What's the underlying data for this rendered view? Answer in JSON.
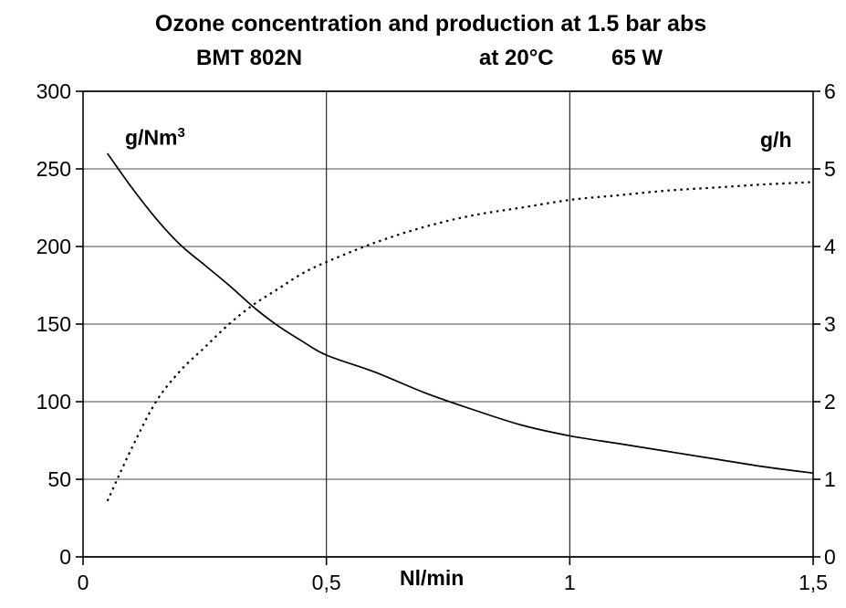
{
  "chart_data": {
    "type": "line",
    "title": "Ozone concentration and production at 1.5 bar abs",
    "subtitle": {
      "model": "BMT 802N",
      "temperature": "at 20°C",
      "power": "65 W"
    },
    "xlabel": "Nl/min",
    "x_range": [
      0,
      1.5
    ],
    "x_ticks": [
      {
        "label": "0",
        "value": 0
      },
      {
        "label": "0,5",
        "value": 0.5
      },
      {
        "label": "1",
        "value": 1
      },
      {
        "label": "1,5",
        "value": 1.5
      }
    ],
    "left_axis": {
      "label": "g/Nm³",
      "label_base": "g/Nm",
      "label_sup": "3",
      "range": [
        0,
        300
      ],
      "ticks": [
        0,
        50,
        100,
        150,
        200,
        250,
        300
      ]
    },
    "right_axis": {
      "label": "g/h",
      "range": [
        0,
        6
      ],
      "ticks": [
        0,
        1,
        2,
        3,
        4,
        5,
        6
      ]
    },
    "grid": {
      "h_values": [
        0,
        50,
        100,
        150,
        200,
        250,
        300
      ],
      "v_values": [
        0.5,
        1.0
      ]
    },
    "line_color": "#000000",
    "series": [
      {
        "name": "Ozone concentration",
        "unit": "g/Nm³",
        "axis": "left",
        "line_style": "solid",
        "x": [
          0.05,
          0.1,
          0.15,
          0.2,
          0.25,
          0.3,
          0.35,
          0.4,
          0.45,
          0.5,
          0.6,
          0.7,
          0.8,
          0.9,
          1.0,
          1.1,
          1.2,
          1.3,
          1.4,
          1.5
        ],
        "y": [
          260,
          238,
          218,
          201,
          188,
          175,
          161,
          149,
          139,
          130,
          119,
          106,
          95,
          85,
          78,
          73,
          68,
          63,
          58,
          54
        ]
      },
      {
        "name": "Ozone production",
        "unit": "g/h",
        "axis": "right",
        "line_style": "dotted",
        "x": [
          0.05,
          0.1,
          0.15,
          0.2,
          0.25,
          0.3,
          0.35,
          0.4,
          0.45,
          0.5,
          0.6,
          0.7,
          0.8,
          0.9,
          1.0,
          1.1,
          1.2,
          1.3,
          1.4,
          1.5
        ],
        "y": [
          0.72,
          1.4,
          2.0,
          2.4,
          2.7,
          3.0,
          3.25,
          3.45,
          3.65,
          3.8,
          4.05,
          4.25,
          4.4,
          4.5,
          4.6,
          4.66,
          4.72,
          4.76,
          4.8,
          4.83
        ]
      }
    ]
  }
}
